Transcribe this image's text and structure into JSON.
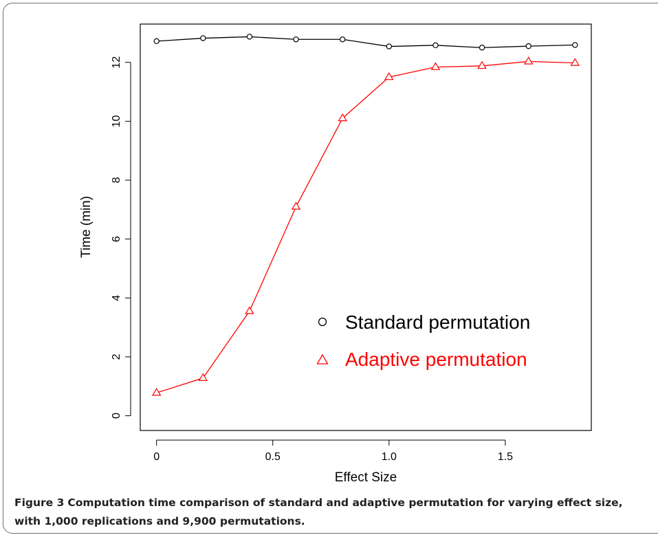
{
  "chart_data": {
    "type": "line",
    "xlabel": "Effect Size",
    "ylabel": "Time (min)",
    "xlim": [
      -0.07,
      1.87
    ],
    "ylim": [
      -0.5,
      13.3
    ],
    "xticks": [
      0,
      0.5,
      1.0,
      1.5
    ],
    "xtick_labels": [
      "0",
      "0.5",
      "1.0",
      "1.5"
    ],
    "yticks": [
      0,
      2,
      4,
      6,
      8,
      10,
      12
    ],
    "ytick_labels": [
      "0",
      "2",
      "4",
      "6",
      "8",
      "10",
      "12"
    ],
    "x": [
      0,
      0.2,
      0.4,
      0.6,
      0.8,
      1.0,
      1.2,
      1.4,
      1.6,
      1.8
    ],
    "series": [
      {
        "name": "Standard permutation",
        "marker": "circle",
        "color": "#000000",
        "values": [
          12.72,
          12.82,
          12.87,
          12.78,
          12.78,
          12.54,
          12.58,
          12.5,
          12.55,
          12.59
        ]
      },
      {
        "name": "Adaptive permutation",
        "marker": "triangle",
        "color": "#ff0000",
        "values": [
          0.78,
          1.28,
          3.55,
          7.1,
          10.1,
          11.5,
          11.84,
          11.88,
          12.03,
          11.98
        ]
      }
    ],
    "legend_position": "inside-lower-right",
    "grid": false
  },
  "caption": {
    "label": "Figure 3",
    "text": "Computation time comparison of standard and adaptive permutation for varying effect size, with 1,000 replications and 9,900 permutations."
  }
}
